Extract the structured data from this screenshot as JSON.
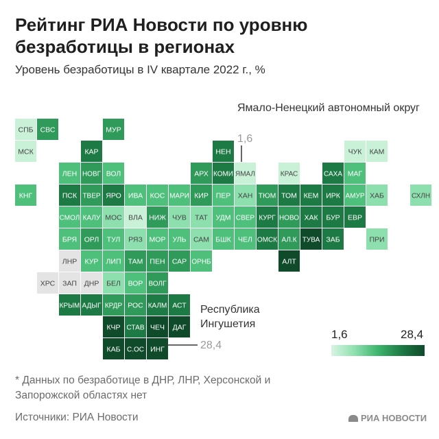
{
  "title": "Рейтинг РИА Новости по уровню безработицы в регионах",
  "subtitle": "Уровень безработицы в IV квартале 2022 г., %",
  "annotations": {
    "yanao_name": "Ямало-Ненецкий автономный округ",
    "yanao_value": "1,6",
    "ingush_name": "Республика Ингушетия",
    "ingush_value": "28,4"
  },
  "legend": {
    "min_label": "1,6",
    "max_label": "28,4"
  },
  "footnote": "* Данных по безработице в ДНР, ЛНР, Херсонской и Запорожской областях нет",
  "source": "Источники: РИА Новости",
  "brand": "РИА НОВОСТИ",
  "colors": {
    "level_0": "#e4e4e4",
    "level_1": "#c8f1d7",
    "level_2": "#8ddfae",
    "level_3": "#4ec07c",
    "level_4": "#2f9a5a",
    "level_5": "#1e7a45",
    "level_6": "#0f4a2a"
  },
  "chart_data": {
    "type": "heatmap",
    "value_range": [
      1.6,
      28.4
    ],
    "cells": [
      {
        "label": "СПБ",
        "row": 0,
        "col": 0,
        "level": 1
      },
      {
        "label": "СВС",
        "row": 0,
        "col": 1,
        "level": 4
      },
      {
        "label": "МУР",
        "row": 0,
        "col": 4,
        "level": 4
      },
      {
        "label": "МСК",
        "row": 1,
        "col": 0,
        "level": 1
      },
      {
        "label": "КАР",
        "row": 1,
        "col": 3,
        "level": 5
      },
      {
        "label": "НЕН",
        "row": 1,
        "col": 9,
        "level": 5
      },
      {
        "label": "ЧУК",
        "row": 1,
        "col": 15,
        "level": 1
      },
      {
        "label": "КАМ",
        "row": 1,
        "col": 16,
        "level": 1
      },
      {
        "label": "ЛЕН",
        "row": 2,
        "col": 2,
        "level": 3
      },
      {
        "label": "НОВГ",
        "row": 2,
        "col": 3,
        "level": 4
      },
      {
        "label": "ВОЛ",
        "row": 2,
        "col": 4,
        "level": 3
      },
      {
        "label": "АРХ",
        "row": 2,
        "col": 8,
        "level": 4
      },
      {
        "label": "КОМИ",
        "row": 2,
        "col": 9,
        "level": 5
      },
      {
        "label": "ЯМАЛ",
        "row": 2,
        "col": 10,
        "level": 1
      },
      {
        "label": "КРАС",
        "row": 2,
        "col": 12,
        "level": 1
      },
      {
        "label": "САХА",
        "row": 2,
        "col": 14,
        "level": 5
      },
      {
        "label": "МАГ",
        "row": 2,
        "col": 15,
        "level": 3
      },
      {
        "label": "КНГ",
        "row": 3,
        "col": 0,
        "level": 3
      },
      {
        "label": "ПСК",
        "row": 3,
        "col": 2,
        "level": 5
      },
      {
        "label": "ТВЕР",
        "row": 3,
        "col": 3,
        "level": 4
      },
      {
        "label": "ЯРО",
        "row": 3,
        "col": 4,
        "level": 5
      },
      {
        "label": "ИВА",
        "row": 3,
        "col": 5,
        "level": 3
      },
      {
        "label": "КОС",
        "row": 3,
        "col": 6,
        "level": 3
      },
      {
        "label": "МАРИ",
        "row": 3,
        "col": 7,
        "level": 3
      },
      {
        "label": "КИР",
        "row": 3,
        "col": 8,
        "level": 4
      },
      {
        "label": "ПЕР",
        "row": 3,
        "col": 9,
        "level": 3
      },
      {
        "label": "ХАН",
        "row": 3,
        "col": 10,
        "level": 2
      },
      {
        "label": "ТЮМ",
        "row": 3,
        "col": 11,
        "level": 4
      },
      {
        "label": "ТОМ",
        "row": 3,
        "col": 12,
        "level": 5
      },
      {
        "label": "КЕМ",
        "row": 3,
        "col": 13,
        "level": 5
      },
      {
        "label": "ИРК",
        "row": 3,
        "col": 14,
        "level": 5
      },
      {
        "label": "АМУР",
        "row": 3,
        "col": 15,
        "level": 3
      },
      {
        "label": "ХАБ",
        "row": 3,
        "col": 16,
        "level": 2
      },
      {
        "label": "СХЛН",
        "row": 3,
        "col": 18,
        "level": 2
      },
      {
        "label": "СМОЛ",
        "row": 4,
        "col": 2,
        "level": 3
      },
      {
        "label": "КАЛУ",
        "row": 4,
        "col": 3,
        "level": 3
      },
      {
        "label": "МОС",
        "row": 4,
        "col": 4,
        "level": 2
      },
      {
        "label": "ВЛА",
        "row": 4,
        "col": 5,
        "level": 1
      },
      {
        "label": "НИЖ",
        "row": 4,
        "col": 6,
        "level": 4
      },
      {
        "label": "ЧУВ",
        "row": 4,
        "col": 7,
        "level": 2
      },
      {
        "label": "ТАТ",
        "row": 4,
        "col": 8,
        "level": 2
      },
      {
        "label": "УДМ",
        "row": 4,
        "col": 9,
        "level": 3
      },
      {
        "label": "СВЕР",
        "row": 4,
        "col": 10,
        "level": 3
      },
      {
        "label": "КУРГ",
        "row": 4,
        "col": 11,
        "level": 5
      },
      {
        "label": "НОВО",
        "row": 4,
        "col": 12,
        "level": 4
      },
      {
        "label": "ХАК",
        "row": 4,
        "col": 13,
        "level": 5
      },
      {
        "label": "БУР",
        "row": 4,
        "col": 14,
        "level": 5
      },
      {
        "label": "ЕВР",
        "row": 4,
        "col": 15,
        "level": 5
      },
      {
        "label": "БРЯ",
        "row": 5,
        "col": 2,
        "level": 3
      },
      {
        "label": "ОРЛ",
        "row": 5,
        "col": 3,
        "level": 4
      },
      {
        "label": "ТУЛ",
        "row": 5,
        "col": 4,
        "level": 3
      },
      {
        "label": "РЯЗ",
        "row": 5,
        "col": 5,
        "level": 2
      },
      {
        "label": "МОР",
        "row": 5,
        "col": 6,
        "level": 3
      },
      {
        "label": "УЛЬ",
        "row": 5,
        "col": 7,
        "level": 3
      },
      {
        "label": "САМ",
        "row": 5,
        "col": 8,
        "level": 2
      },
      {
        "label": "БШК",
        "row": 5,
        "col": 9,
        "level": 3
      },
      {
        "label": "ЧЕЛ",
        "row": 5,
        "col": 10,
        "level": 3
      },
      {
        "label": "ОМСК",
        "row": 5,
        "col": 11,
        "level": 5
      },
      {
        "label": "АЛ.К",
        "row": 5,
        "col": 12,
        "level": 4
      },
      {
        "label": "ТУВА",
        "row": 5,
        "col": 13,
        "level": 6
      },
      {
        "label": "ЗАБ",
        "row": 5,
        "col": 14,
        "level": 5
      },
      {
        "label": "ПРИ",
        "row": 5,
        "col": 16,
        "level": 2
      },
      {
        "label": "ЛНР",
        "row": 6,
        "col": 2,
        "level": 0
      },
      {
        "label": "КУР",
        "row": 6,
        "col": 3,
        "level": 3
      },
      {
        "label": "ЛИП",
        "row": 6,
        "col": 4,
        "level": 3
      },
      {
        "label": "ТАМ",
        "row": 6,
        "col": 5,
        "level": 4
      },
      {
        "label": "ПЕН",
        "row": 6,
        "col": 6,
        "level": 4
      },
      {
        "label": "САР",
        "row": 6,
        "col": 7,
        "level": 4
      },
      {
        "label": "ОРНБ",
        "row": 6,
        "col": 8,
        "level": 3
      },
      {
        "label": "АЛТ",
        "row": 6,
        "col": 12,
        "level": 6
      },
      {
        "label": "ХРС",
        "row": 7,
        "col": 1,
        "level": 0
      },
      {
        "label": "ЗАП",
        "row": 7,
        "col": 2,
        "level": 0
      },
      {
        "label": "ДНР",
        "row": 7,
        "col": 3,
        "level": 0
      },
      {
        "label": "БЕЛ",
        "row": 7,
        "col": 4,
        "level": 2
      },
      {
        "label": "ВОР",
        "row": 7,
        "col": 5,
        "level": 3
      },
      {
        "label": "ВОЛГ",
        "row": 7,
        "col": 6,
        "level": 4
      },
      {
        "label": "КРЫМ",
        "row": 8,
        "col": 2,
        "level": 5
      },
      {
        "label": "АДЫГ",
        "row": 8,
        "col": 3,
        "level": 5
      },
      {
        "label": "КРДР",
        "row": 8,
        "col": 4,
        "level": 4
      },
      {
        "label": "РОС",
        "row": 8,
        "col": 5,
        "level": 4
      },
      {
        "label": "КАЛМ",
        "row": 8,
        "col": 6,
        "level": 5
      },
      {
        "label": "АСТ",
        "row": 8,
        "col": 7,
        "level": 5
      },
      {
        "label": "КЧР",
        "row": 9,
        "col": 4,
        "level": 6
      },
      {
        "label": "СТАВ",
        "row": 9,
        "col": 5,
        "level": 5
      },
      {
        "label": "ЧЕЧ",
        "row": 9,
        "col": 6,
        "level": 6
      },
      {
        "label": "ДАГ",
        "row": 9,
        "col": 7,
        "level": 6
      },
      {
        "label": "КАБ",
        "row": 10,
        "col": 4,
        "level": 6
      },
      {
        "label": "С.ОС",
        "row": 10,
        "col": 5,
        "level": 6
      },
      {
        "label": "ИНГ",
        "row": 10,
        "col": 6,
        "level": 6
      }
    ]
  }
}
